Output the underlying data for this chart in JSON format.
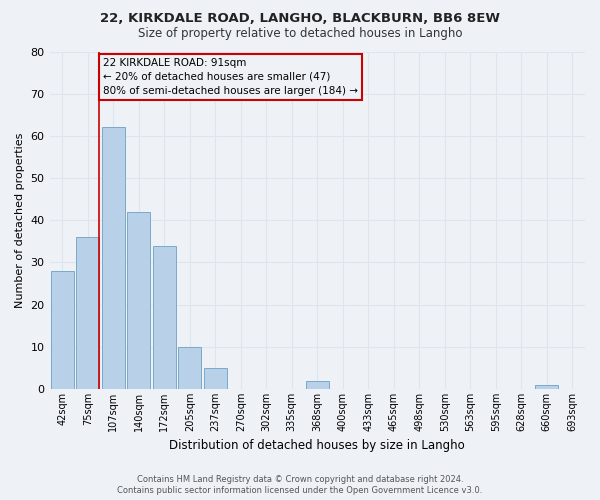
{
  "title1": "22, KIRKDALE ROAD, LANGHO, BLACKBURN, BB6 8EW",
  "title2": "Size of property relative to detached houses in Langho",
  "xlabel": "Distribution of detached houses by size in Langho",
  "ylabel": "Number of detached properties",
  "bar_labels": [
    "42sqm",
    "75sqm",
    "107sqm",
    "140sqm",
    "172sqm",
    "205sqm",
    "237sqm",
    "270sqm",
    "302sqm",
    "335sqm",
    "368sqm",
    "400sqm",
    "433sqm",
    "465sqm",
    "498sqm",
    "530sqm",
    "563sqm",
    "595sqm",
    "628sqm",
    "660sqm",
    "693sqm"
  ],
  "bar_values": [
    28,
    36,
    62,
    42,
    34,
    10,
    5,
    0,
    0,
    0,
    2,
    0,
    0,
    0,
    0,
    0,
    0,
    0,
    0,
    1,
    0
  ],
  "bar_color": "#b8d0e8",
  "bar_edge_color": "#7aaac8",
  "vline_color": "#cc0000",
  "ylim": [
    0,
    80
  ],
  "yticks": [
    0,
    10,
    20,
    30,
    40,
    50,
    60,
    70,
    80
  ],
  "annotation_box_text": "22 KIRKDALE ROAD: 91sqm\n← 20% of detached houses are smaller (47)\n80% of semi-detached houses are larger (184) →",
  "annotation_box_color": "#cc0000",
  "background_color": "#eef2f7",
  "grid_color": "#dce6f0",
  "footer_line1": "Contains HM Land Registry data © Crown copyright and database right 2024.",
  "footer_line2": "Contains public sector information licensed under the Open Government Licence v3.0."
}
